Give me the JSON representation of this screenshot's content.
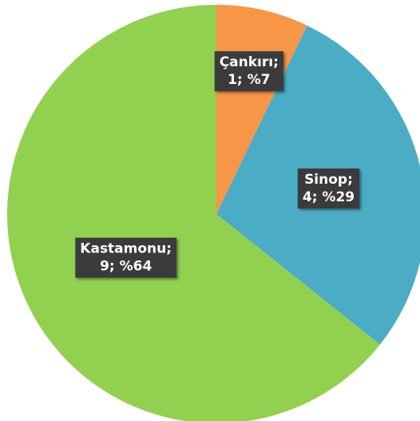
{
  "chart_data": {
    "type": "pie",
    "categories": [
      "Çankırı;",
      "Sinop;",
      "Kastamonu;"
    ],
    "values": [
      1,
      4,
      9
    ],
    "value_labels": [
      "1; %7",
      "4; %29",
      "9; %64"
    ],
    "colors": [
      "#f79646",
      "#4bacc6",
      "#92d050"
    ]
  }
}
